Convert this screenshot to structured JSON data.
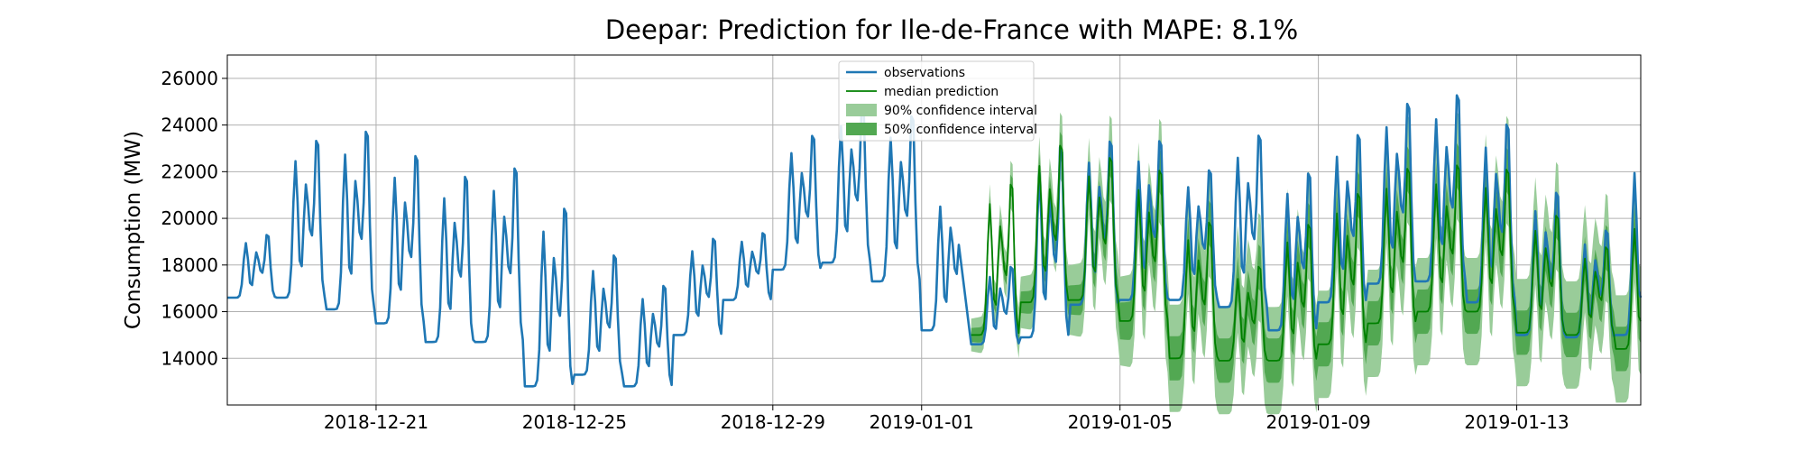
{
  "chart_data": {
    "type": "line",
    "title": "Deepar: Prediction for Ile-de-France with MAPE: 8.1%",
    "xlabel": "",
    "ylabel": "Consumption (MW)",
    "ylim": [
      12000,
      27000
    ],
    "xlim": [
      "2018-12-18",
      "2019-01-15"
    ],
    "grid": true,
    "legend_position": "top-center",
    "x_ticks": [
      "2018-12-21",
      "2018-12-25",
      "2018-12-29",
      "2019-01-01",
      "2019-01-05",
      "2019-01-09",
      "2019-01-13"
    ],
    "y_ticks": [
      14000,
      16000,
      18000,
      20000,
      22000,
      24000,
      26000
    ],
    "series": [
      {
        "name": "observations",
        "color": "#1f77b4",
        "daily_values": [
          {
            "date": "2018-12-18",
            "min": 16600,
            "max": 19600
          },
          {
            "date": "2018-12-19",
            "min": 16600,
            "max": 24100
          },
          {
            "date": "2018-12-20",
            "min": 16100,
            "max": 24600
          },
          {
            "date": "2018-12-21",
            "min": 15500,
            "max": 23500
          },
          {
            "date": "2018-12-22",
            "min": 14700,
            "max": 22600
          },
          {
            "date": "2018-12-23",
            "min": 14700,
            "max": 23000
          },
          {
            "date": "2018-12-24",
            "min": 12800,
            "max": 21300
          },
          {
            "date": "2018-12-25",
            "min": 13300,
            "max": 19000
          },
          {
            "date": "2018-12-26",
            "min": 12800,
            "max": 17600
          },
          {
            "date": "2018-12-27",
            "min": 15000,
            "max": 19600
          },
          {
            "date": "2018-12-28",
            "min": 16500,
            "max": 19700
          },
          {
            "date": "2018-12-29",
            "min": 17800,
            "max": 24200
          },
          {
            "date": "2018-12-30",
            "min": 18100,
            "max": 25600
          },
          {
            "date": "2018-12-31",
            "min": 17300,
            "max": 25200
          },
          {
            "date": "2019-01-01",
            "min": 15200,
            "max": 22000
          },
          {
            "date": "2019-01-02",
            "min": 14700,
            "max": 20700
          }
        ]
      },
      {
        "name": "median prediction",
        "color": "#008000",
        "daily_values": [
          {
            "date": "2019-01-02",
            "min": 15000,
            "max": 22200
          },
          {
            "date": "2019-01-03",
            "min": 16400,
            "max": 23900
          },
          {
            "date": "2019-01-04",
            "min": 16500,
            "max": 23300
          },
          {
            "date": "2019-01-05",
            "min": 15600,
            "max": 22800
          },
          {
            "date": "2019-01-06",
            "min": 14000,
            "max": 20500
          },
          {
            "date": "2019-01-07",
            "min": 13900,
            "max": 18400
          },
          {
            "date": "2019-01-08",
            "min": 13900,
            "max": 20400
          },
          {
            "date": "2019-01-09",
            "min": 14600,
            "max": 21800
          },
          {
            "date": "2019-01-10",
            "min": 15500,
            "max": 22900
          },
          {
            "date": "2019-01-11",
            "min": 16000,
            "max": 23000
          },
          {
            "date": "2019-01-12",
            "min": 16000,
            "max": 22800
          },
          {
            "date": "2019-01-13",
            "min": 15100,
            "max": 20700
          },
          {
            "date": "2019-01-14",
            "min": 15000,
            "max": 19200
          },
          {
            "date": "2019-01-15",
            "min": 14400,
            "max": 21000
          }
        ]
      },
      {
        "name": "90% confidence interval",
        "color": "#99cc99"
      },
      {
        "name": "50% confidence interval",
        "color": "#52a852"
      }
    ],
    "actuals_after_forecast_start": {
      "name": "observations",
      "daily_values": [
        {
          "date": "2019-01-02",
          "min": 14600,
          "max": 18300
        },
        {
          "date": "2019-01-03",
          "min": 14900,
          "max": 24000
        },
        {
          "date": "2019-01-04",
          "min": 16300,
          "max": 24100
        },
        {
          "date": "2019-01-05",
          "min": 16500,
          "max": 24100
        },
        {
          "date": "2019-01-06",
          "min": 16500,
          "max": 22700
        },
        {
          "date": "2019-01-07",
          "min": 16200,
          "max": 24400
        },
        {
          "date": "2019-01-08",
          "min": 15200,
          "max": 22700
        },
        {
          "date": "2019-01-09",
          "min": 16400,
          "max": 24400
        },
        {
          "date": "2019-01-10",
          "min": 17200,
          "max": 25800
        },
        {
          "date": "2019-01-11",
          "min": 17300,
          "max": 26200
        },
        {
          "date": "2019-01-12",
          "min": 16400,
          "max": 24900
        },
        {
          "date": "2019-01-13",
          "min": 15000,
          "max": 21800
        },
        {
          "date": "2019-01-14",
          "min": 14900,
          "max": 20000
        },
        {
          "date": "2019-01-15",
          "min": 15000,
          "max": 23900
        }
      ]
    }
  }
}
